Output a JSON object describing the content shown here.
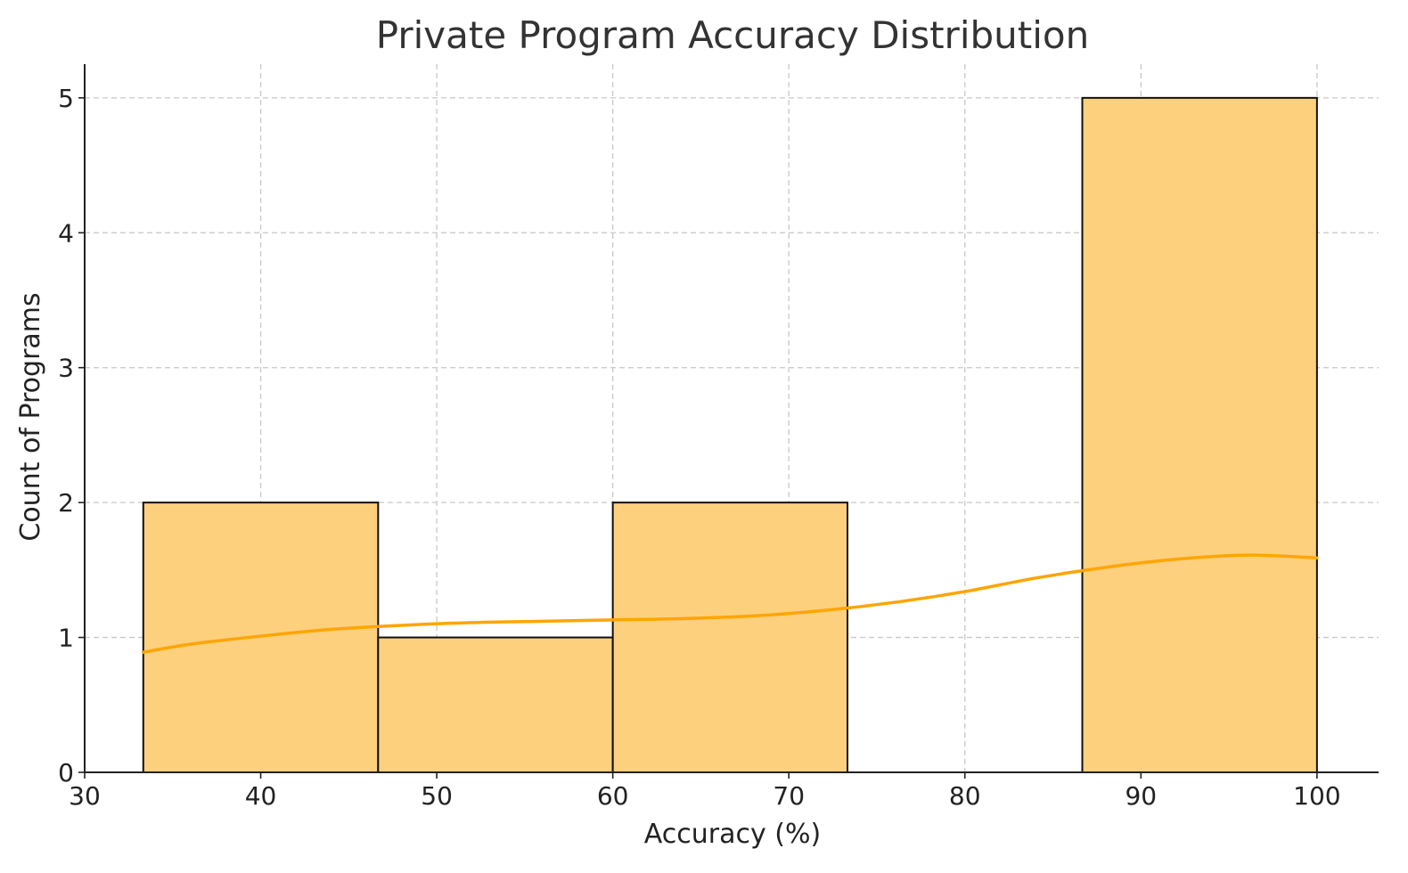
{
  "chart_data": {
    "type": "bar",
    "title": "Private Program Accuracy Distribution",
    "xlabel": "Accuracy (%)",
    "ylabel": "Count of Programs",
    "xlim": [
      30,
      103.5
    ],
    "ylim": [
      0,
      5.25
    ],
    "x_ticks": [
      30,
      40,
      50,
      60,
      70,
      80,
      90,
      100
    ],
    "y_ticks": [
      0,
      1,
      2,
      3,
      4,
      5
    ],
    "grid": true,
    "bins": [
      {
        "start": 33.33,
        "end": 46.67,
        "count": 2
      },
      {
        "start": 46.67,
        "end": 60.0,
        "count": 1
      },
      {
        "start": 60.0,
        "end": 73.33,
        "count": 2
      },
      {
        "start": 73.33,
        "end": 86.67,
        "count": 0
      },
      {
        "start": 86.67,
        "end": 100.0,
        "count": 5
      }
    ],
    "kde_curve": {
      "x": [
        33.33,
        36,
        40,
        44,
        48,
        52,
        56,
        60,
        64,
        68,
        72,
        76,
        80,
        84,
        88,
        92,
        96,
        100
      ],
      "y": [
        0.89,
        0.95,
        1.01,
        1.06,
        1.09,
        1.11,
        1.12,
        1.13,
        1.14,
        1.16,
        1.2,
        1.26,
        1.34,
        1.44,
        1.52,
        1.58,
        1.61,
        1.59
      ]
    },
    "colors": {
      "bar_fill": "#FDD07E",
      "bar_edge": "#111111",
      "kde_line": "#FFA500"
    }
  }
}
